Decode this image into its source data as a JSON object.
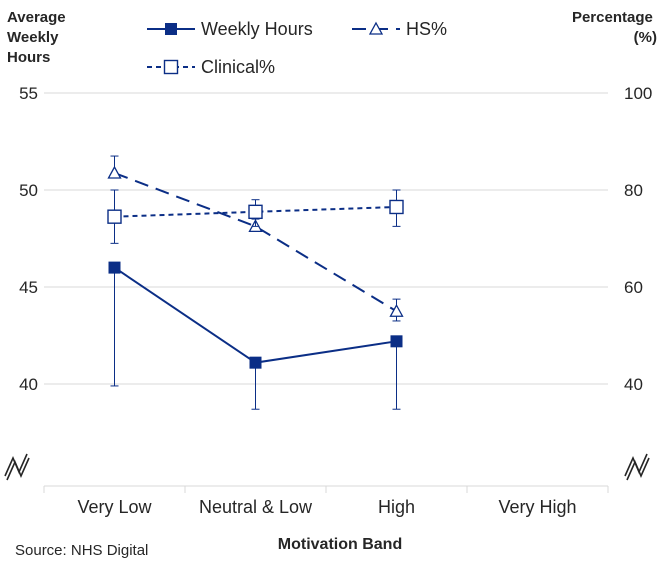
{
  "chart_data": {
    "type": "line",
    "xlabel": "Motivation Band",
    "categories": [
      "Very Low",
      "Neutral & Low",
      "High",
      "Very High"
    ],
    "y_left": {
      "title_lines": [
        "Average",
        "Weekly",
        "Hours"
      ],
      "ticks": [
        "55",
        "50",
        "45",
        "40"
      ],
      "range": [
        40,
        55
      ]
    },
    "y_right": {
      "title_lines": [
        "Percentage",
        "(%)"
      ],
      "ticks": [
        "100",
        "80",
        "60",
        "40"
      ],
      "range": [
        40,
        100
      ]
    },
    "series": [
      {
        "name": "Weekly Hours",
        "axis": "left",
        "values": [
          46.0,
          41.1,
          42.2,
          null
        ],
        "error_low": [
          39.9,
          38.7,
          38.7,
          null
        ],
        "error_high": [
          46.0,
          41.1,
          42.2,
          null
        ],
        "marker": "filled-square",
        "line": "solid",
        "color": "#0b2e86"
      },
      {
        "name": "HS%",
        "axis": "right",
        "values": [
          83.5,
          72.5,
          55.0,
          null
        ],
        "error_low": [
          83.5,
          72.5,
          53.0,
          null
        ],
        "error_high": [
          87.0,
          74.0,
          57.5,
          null
        ],
        "marker": "open-triangle",
        "line": "long-dash",
        "color": "#0b2e86"
      },
      {
        "name": "Clinical%",
        "axis": "right",
        "values": [
          74.5,
          75.5,
          76.5,
          null
        ],
        "error_low": [
          69.0,
          72.5,
          72.5,
          null
        ],
        "error_high": [
          80.0,
          78.0,
          80.0,
          null
        ],
        "marker": "open-square",
        "line": "short-dash",
        "color": "#0b2e86"
      }
    ],
    "legend_placement": "top",
    "gridlines": "horizontal",
    "axis_break": true,
    "source": "Source: NHS Digital"
  }
}
